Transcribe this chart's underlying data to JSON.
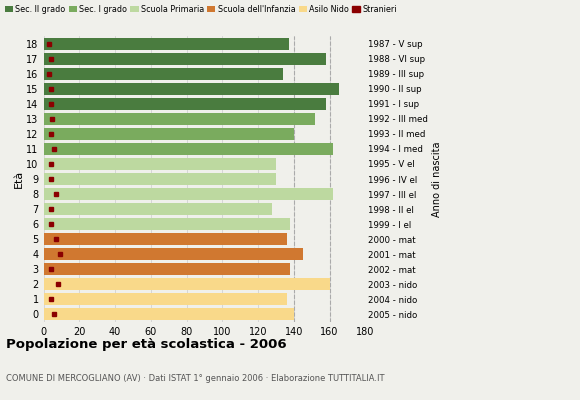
{
  "ages": [
    18,
    17,
    16,
    15,
    14,
    13,
    12,
    11,
    10,
    9,
    8,
    7,
    6,
    5,
    4,
    3,
    2,
    1,
    0
  ],
  "values": [
    137,
    158,
    134,
    165,
    158,
    152,
    140,
    162,
    130,
    130,
    162,
    128,
    138,
    136,
    145,
    138,
    160,
    136,
    140
  ],
  "foreigners": [
    3,
    4,
    3,
    4,
    4,
    5,
    4,
    6,
    4,
    4,
    7,
    4,
    4,
    7,
    9,
    4,
    8,
    4,
    6
  ],
  "anno": [
    "1987 - V sup",
    "1988 - VI sup",
    "1989 - III sup",
    "1990 - II sup",
    "1991 - I sup",
    "1992 - III med",
    "1993 - II med",
    "1994 - I med",
    "1995 - V el",
    "1996 - IV el",
    "1997 - III el",
    "1998 - II el",
    "1999 - I el",
    "2000 - mat",
    "2001 - mat",
    "2002 - mat",
    "2003 - nido",
    "2004 - nido",
    "2005 - nido"
  ],
  "bar_colors": [
    "#4a7c3f",
    "#4a7c3f",
    "#4a7c3f",
    "#4a7c3f",
    "#4a7c3f",
    "#7aab5e",
    "#7aab5e",
    "#7aab5e",
    "#bdd9a0",
    "#bdd9a0",
    "#bdd9a0",
    "#bdd9a0",
    "#bdd9a0",
    "#d07830",
    "#d07830",
    "#d07830",
    "#f9d98a",
    "#f9d98a",
    "#f9d98a"
  ],
  "foreigner_color": "#8b0000",
  "title": "Popolazione per età scolastica - 2006",
  "subtitle": "COMUNE DI MERCOGLIANO (AV) · Dati ISTAT 1° gennaio 2006 · Elaborazione TUTTITALIA.IT",
  "ylabel": "Età",
  "right_label": "Anno di nascita",
  "xlim": [
    0,
    180
  ],
  "xticks": [
    0,
    20,
    40,
    60,
    80,
    100,
    120,
    140,
    160,
    180
  ],
  "legend_entries": [
    "Sec. II grado",
    "Sec. I grado",
    "Scuola Primaria",
    "Scuola dell'Infanzia",
    "Asilo Nido",
    "Stranieri"
  ],
  "legend_colors": [
    "#4a7c3f",
    "#7aab5e",
    "#bdd9a0",
    "#d07830",
    "#f9d98a",
    "#8b0000"
  ],
  "bg_color": "#f0f0eb",
  "grid_color": "#cccccc",
  "dashed_lines": [
    140,
    160
  ]
}
